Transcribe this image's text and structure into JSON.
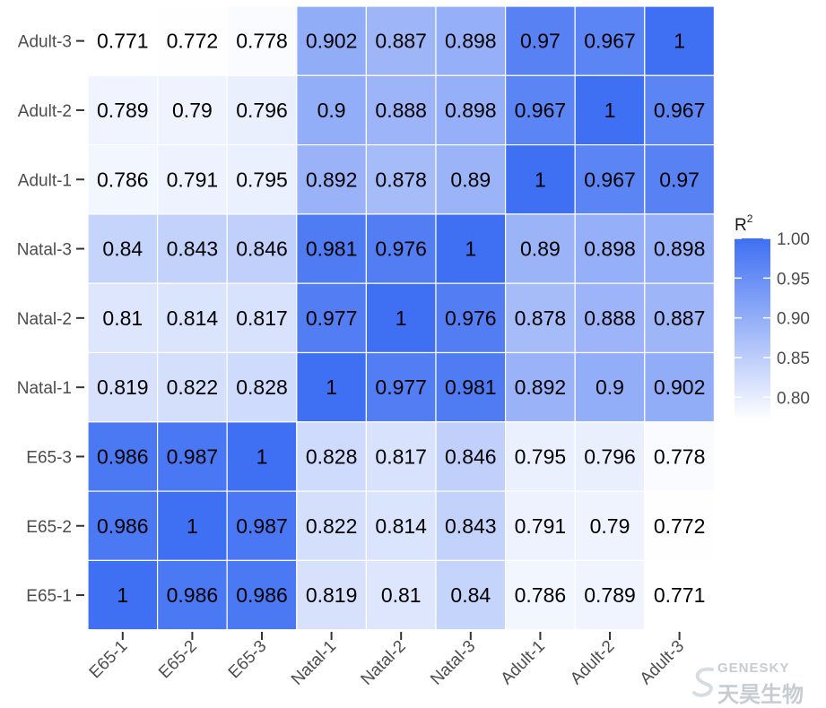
{
  "chart_data": {
    "type": "heatmap",
    "x_categories": [
      "E65-1",
      "E65-2",
      "E65-3",
      "Natal-1",
      "Natal-2",
      "Natal-3",
      "Adult-1",
      "Adult-2",
      "Adult-3"
    ],
    "y_categories_top_to_bottom": [
      "Adult-3",
      "Adult-2",
      "Adult-1",
      "Natal-3",
      "Natal-2",
      "Natal-1",
      "E65-3",
      "E65-2",
      "E65-1"
    ],
    "values_top_to_bottom": [
      [
        "0.771",
        "0.772",
        "0.778",
        "0.902",
        "0.887",
        "0.898",
        "0.97",
        "0.967",
        "1"
      ],
      [
        "0.789",
        "0.79",
        "0.796",
        "0.9",
        "0.888",
        "0.898",
        "0.967",
        "1",
        "0.967"
      ],
      [
        "0.786",
        "0.791",
        "0.795",
        "0.892",
        "0.878",
        "0.89",
        "1",
        "0.967",
        "0.97"
      ],
      [
        "0.84",
        "0.843",
        "0.846",
        "0.981",
        "0.976",
        "1",
        "0.89",
        "0.898",
        "0.898"
      ],
      [
        "0.81",
        "0.814",
        "0.817",
        "0.977",
        "1",
        "0.976",
        "0.878",
        "0.888",
        "0.887"
      ],
      [
        "0.819",
        "0.822",
        "0.828",
        "1",
        "0.977",
        "0.981",
        "0.892",
        "0.9",
        "0.902"
      ],
      [
        "0.986",
        "0.987",
        "1",
        "0.828",
        "0.817",
        "0.846",
        "0.795",
        "0.796",
        "0.778"
      ],
      [
        "0.986",
        "1",
        "0.987",
        "0.822",
        "0.814",
        "0.843",
        "0.791",
        "0.79",
        "0.772"
      ],
      [
        "1",
        "0.986",
        "0.986",
        "0.819",
        "0.81",
        "0.84",
        "0.786",
        "0.789",
        "0.771"
      ]
    ],
    "color_scale": {
      "low": "#ffffff",
      "high": "#3f6ff2",
      "domain": [
        0.771,
        1.0
      ]
    },
    "legend": {
      "title": "R",
      "title_superscript": "2",
      "ticks": [
        {
          "value": 1.0,
          "label": "1.00"
        },
        {
          "value": 0.95,
          "label": "0.95"
        },
        {
          "value": 0.9,
          "label": "0.90"
        },
        {
          "value": 0.85,
          "label": "0.85"
        },
        {
          "value": 0.8,
          "label": "0.80"
        }
      ],
      "placement": "right"
    },
    "grid": true
  },
  "watermark": {
    "brand": "GENESKY",
    "name": "天昊生物"
  }
}
